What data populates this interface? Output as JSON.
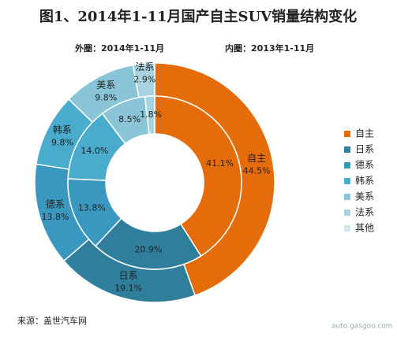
{
  "chart_data": {
    "type": "donut",
    "title": "图1、2014年1-11月国产自主SUV销量结构变化",
    "categories": [
      "自主",
      "日系",
      "德系",
      "韩系",
      "美系",
      "法系",
      "其他"
    ],
    "colors": [
      "#e46c0a",
      "#2f7f9c",
      "#3a98c0",
      "#4aaccd",
      "#8ac5d7",
      "#a8d4e2",
      "#cfe8f0"
    ],
    "series": [
      {
        "name": "外圈：2014年1-11月",
        "values": [
          44.5,
          19.1,
          13.8,
          9.8,
          9.8,
          2.9,
          null
        ],
        "value_labels": [
          "44.5%",
          "19.1%",
          "13.8%",
          "9.8%",
          "9.8%",
          "2.9%",
          null
        ]
      },
      {
        "name": "内圈：2013年1-11月",
        "values": [
          41.1,
          20.9,
          13.8,
          14.0,
          8.5,
          1.8,
          null
        ],
        "value_labels": [
          "41.1%",
          "20.9%",
          "13.8%",
          "14.0%",
          "8.5%",
          "1.8%",
          null
        ]
      }
    ],
    "legend": "right",
    "source": "来源：盖世汽车网",
    "watermark": "auto.gasgoo.com"
  }
}
